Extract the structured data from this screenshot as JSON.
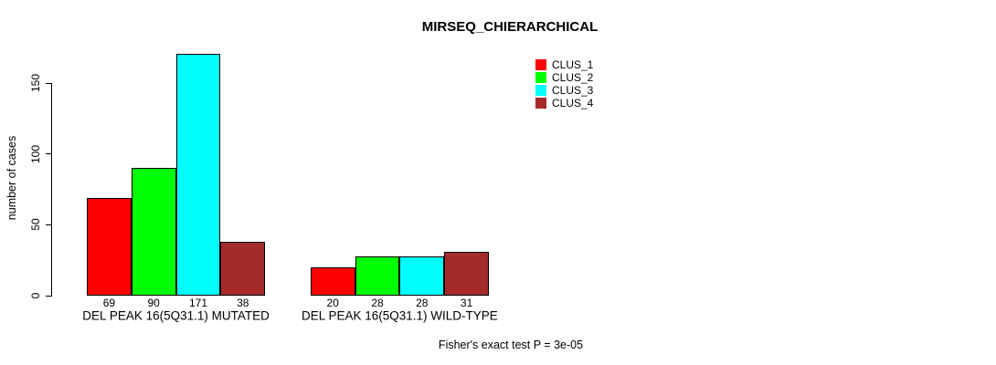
{
  "chart_data": {
    "type": "bar",
    "title": "MIRSEQ_CHIERARCHICAL",
    "ylabel": "number of cases",
    "xlabel": "",
    "categories": [
      "DEL PEAK 16(5Q31.1) MUTATED",
      "DEL PEAK 16(5Q31.1) WILD-TYPE"
    ],
    "series": [
      {
        "name": "CLUS_1",
        "color": "#FF0000",
        "values": [
          69,
          20
        ]
      },
      {
        "name": "CLUS_2",
        "color": "#00FF00",
        "values": [
          90,
          28
        ]
      },
      {
        "name": "CLUS_3",
        "color": "#00FFFF",
        "values": [
          171,
          28
        ]
      },
      {
        "name": "CLUS_4",
        "color": "#A52A2A",
        "values": [
          38,
          31
        ]
      }
    ],
    "yticks": [
      0,
      50,
      100,
      150
    ],
    "ylim": [
      0,
      175
    ],
    "grid": false,
    "bar_value_labels_shown": true,
    "legend_position": "top-right",
    "annotation": "Fisher's exact test P = 3e-05"
  }
}
